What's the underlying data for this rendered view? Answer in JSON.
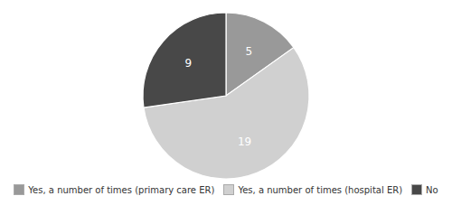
{
  "chart_data": {
    "type": "pie",
    "categories": [
      "Yes, a number of times (primary care ER)",
      "Yes, a number of times (hospital ER)",
      "No"
    ],
    "values": [
      5,
      19,
      9
    ],
    "colors": [
      "#999999",
      "#d0d0d0",
      "#484848"
    ],
    "data_labels": true,
    "legend": "bottom"
  }
}
